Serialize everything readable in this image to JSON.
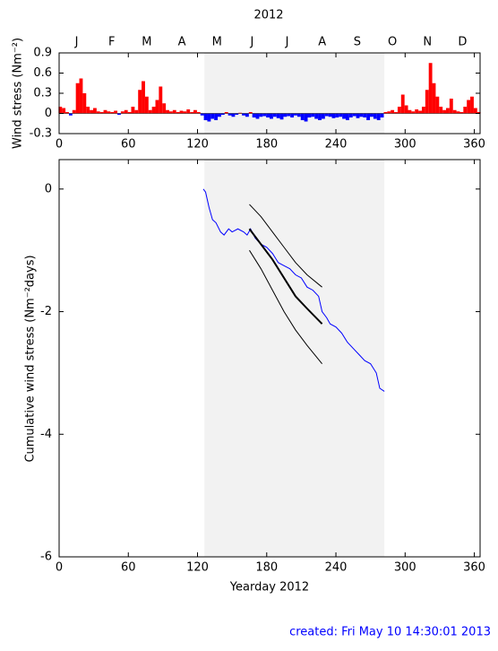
{
  "chart_data": [
    {
      "type": "bar",
      "title": "2012",
      "y_label": "Wind stress (Nm⁻²)",
      "months": [
        "J",
        "F",
        "M",
        "A",
        "M",
        "J",
        "J",
        "A",
        "S",
        "O",
        "N",
        "D"
      ],
      "xlim": [
        0,
        365
      ],
      "xticks": [
        0,
        60,
        120,
        180,
        240,
        300,
        360
      ],
      "ylim": [
        -0.3,
        0.9
      ],
      "yticks": [
        -0.3,
        0,
        0.3,
        0.6,
        0.9
      ],
      "shaded_range": [
        126,
        282
      ],
      "shade_color": "#f2f2f2",
      "colors": {
        "positive": "#ff0000",
        "negative": "#0000ff"
      },
      "x": [
        1,
        4,
        7,
        10,
        13,
        16,
        19,
        22,
        25,
        28,
        31,
        34,
        37,
        40,
        43,
        46,
        49,
        52,
        55,
        58,
        61,
        64,
        67,
        70,
        73,
        76,
        79,
        82,
        85,
        88,
        91,
        94,
        97,
        100,
        103,
        106,
        109,
        112,
        115,
        118,
        121,
        124,
        127,
        130,
        133,
        136,
        139,
        142,
        145,
        148,
        151,
        154,
        157,
        160,
        163,
        166,
        169,
        172,
        175,
        178,
        181,
        184,
        187,
        190,
        193,
        196,
        199,
        202,
        205,
        208,
        211,
        214,
        217,
        220,
        223,
        226,
        229,
        232,
        235,
        238,
        241,
        244,
        247,
        250,
        253,
        256,
        259,
        262,
        265,
        268,
        271,
        274,
        277,
        280,
        283,
        286,
        289,
        292,
        295,
        298,
        301,
        304,
        307,
        310,
        313,
        316,
        319,
        322,
        325,
        328,
        331,
        334,
        337,
        340,
        343,
        346,
        349,
        352,
        355,
        358,
        361,
        364
      ],
      "values": [
        0.1,
        0.08,
        0.02,
        -0.03,
        0.05,
        0.45,
        0.52,
        0.3,
        0.1,
        0.05,
        0.08,
        0.03,
        0.02,
        0.05,
        0.03,
        0.02,
        0.04,
        -0.02,
        0.03,
        0.05,
        0.02,
        0.1,
        0.05,
        0.35,
        0.48,
        0.25,
        0.05,
        0.1,
        0.2,
        0.4,
        0.15,
        0.05,
        0.03,
        0.05,
        0.02,
        0.04,
        0.03,
        0.06,
        0.02,
        0.05,
        0.02,
        -0.03,
        -0.1,
        -0.12,
        -0.08,
        -0.1,
        -0.05,
        -0.02,
        0.02,
        -0.03,
        -0.05,
        -0.02,
        0.01,
        -0.03,
        -0.05,
        0.02,
        -0.06,
        -0.08,
        -0.05,
        -0.04,
        -0.06,
        -0.08,
        -0.05,
        -0.07,
        -0.09,
        -0.05,
        -0.04,
        -0.06,
        -0.03,
        -0.05,
        -0.1,
        -0.12,
        -0.06,
        -0.05,
        -0.08,
        -0.1,
        -0.08,
        -0.04,
        -0.05,
        -0.07,
        -0.06,
        -0.05,
        -0.08,
        -0.1,
        -0.06,
        -0.04,
        -0.07,
        -0.05,
        -0.06,
        -0.1,
        -0.05,
        -0.08,
        -0.1,
        -0.06,
        0.02,
        0.03,
        0.05,
        0.02,
        0.1,
        0.28,
        0.12,
        0.05,
        0.03,
        0.06,
        0.04,
        0.1,
        0.35,
        0.75,
        0.45,
        0.25,
        0.1,
        0.05,
        0.08,
        0.22,
        0.05,
        0.03,
        0.02,
        0.1,
        0.2,
        0.25,
        0.08,
        0.02
      ]
    },
    {
      "type": "line",
      "x_label": "Yearday 2012",
      "y_label": "Cumulative wind stress (Nm⁻²days)",
      "xlim": [
        0,
        365
      ],
      "xticks": [
        0,
        60,
        120,
        180,
        240,
        300,
        360
      ],
      "ylim": [
        -6,
        0.48
      ],
      "yticks": [
        -6,
        -4,
        -2,
        0
      ],
      "shaded_range": [
        126,
        282
      ],
      "shade_color": "#f2f2f2",
      "series": [
        {
          "color": "#0000ff",
          "width": 1,
          "x": [
            125,
            127,
            130,
            133,
            136,
            140,
            143,
            147,
            150,
            155,
            160,
            163,
            166,
            170,
            175,
            180,
            185,
            190,
            195,
            200,
            205,
            210,
            215,
            220,
            225,
            228,
            232,
            235,
            240,
            245,
            250,
            255,
            260,
            265,
            270,
            275,
            278,
            282
          ],
          "values": [
            0,
            -0.05,
            -0.3,
            -0.5,
            -0.55,
            -0.7,
            -0.75,
            -0.65,
            -0.7,
            -0.65,
            -0.7,
            -0.75,
            -0.65,
            -0.8,
            -0.9,
            -0.95,
            -1.05,
            -1.2,
            -1.25,
            -1.3,
            -1.4,
            -1.45,
            -1.6,
            -1.65,
            -1.75,
            -2.0,
            -2.1,
            -2.2,
            -2.25,
            -2.35,
            -2.5,
            -2.6,
            -2.7,
            -2.8,
            -2.85,
            -3.0,
            -3.25,
            -3.3
          ]
        },
        {
          "color": "#000000",
          "width": 2,
          "x": [
            165,
            175,
            185,
            195,
            205,
            215,
            228
          ],
          "values": [
            -0.65,
            -0.9,
            -1.15,
            -1.45,
            -1.75,
            -1.95,
            -2.2
          ]
        },
        {
          "color": "#000000",
          "width": 1,
          "x": [
            165,
            175,
            185,
            195,
            205,
            215,
            228
          ],
          "values": [
            -0.25,
            -0.45,
            -0.7,
            -0.95,
            -1.2,
            -1.4,
            -1.6
          ]
        },
        {
          "color": "#000000",
          "width": 1,
          "x": [
            165,
            175,
            185,
            195,
            205,
            215,
            228
          ],
          "values": [
            -1.0,
            -1.3,
            -1.65,
            -2.0,
            -2.3,
            -2.55,
            -2.85
          ]
        }
      ]
    }
  ],
  "footer": "created:  Fri May 10 14:30:01 2013"
}
